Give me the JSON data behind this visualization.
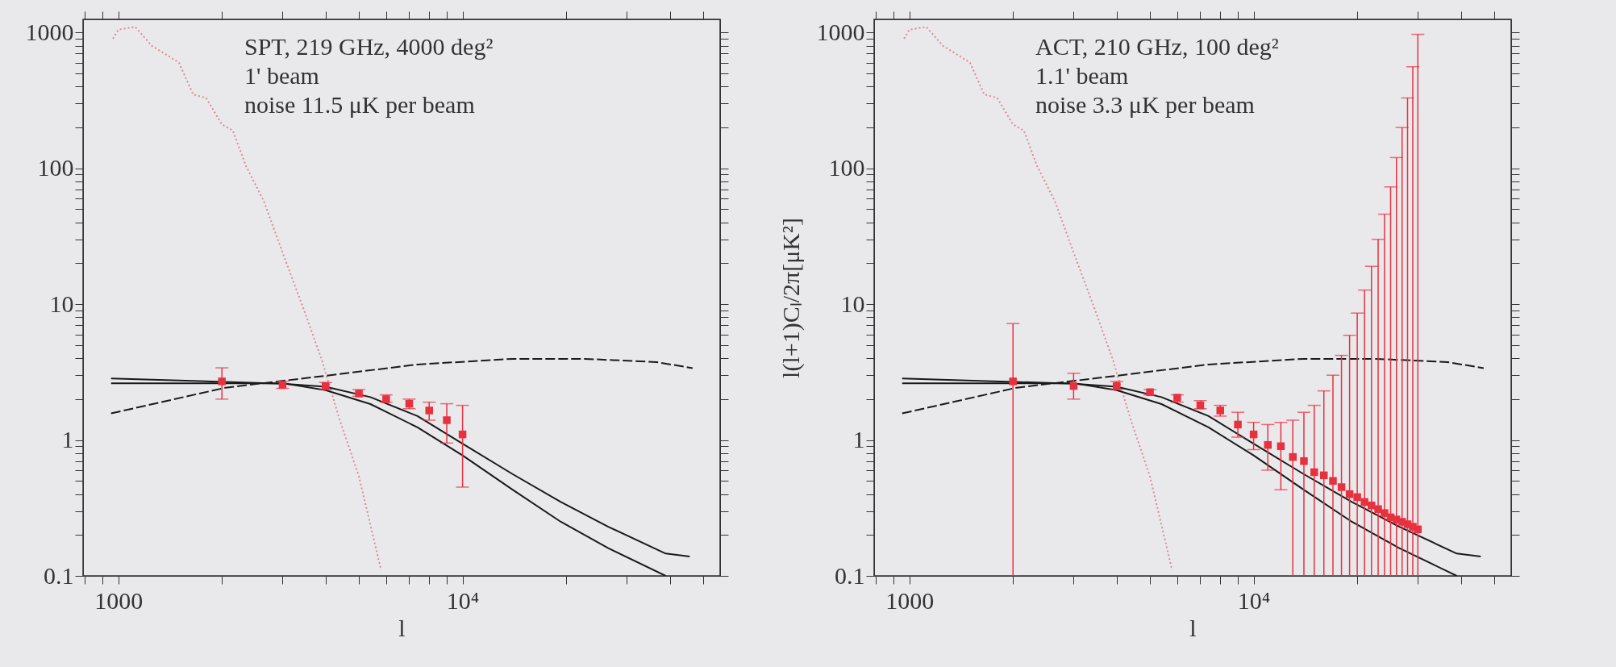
{
  "chart_data": [
    {
      "type": "line",
      "xlabel": "l",
      "log": "xy",
      "grid": false,
      "annotations": [
        "SPT, 219 GHz, 4000 deg²",
        "1' beam",
        "noise 11.5 μK per beam"
      ],
      "xlim": [
        790,
        56000
      ],
      "ylim": [
        0.1,
        1250
      ],
      "xticks": [
        {
          "value": 800,
          "label": null
        },
        {
          "value": 900,
          "label": null
        },
        1000,
        {
          "value": 2000,
          "label": null
        },
        {
          "value": 3000,
          "label": null
        },
        {
          "value": 4000,
          "label": null
        },
        {
          "value": 5000,
          "label": null
        },
        {
          "value": 6000,
          "label": null
        },
        {
          "value": 7000,
          "label": null
        },
        {
          "value": 8000,
          "label": null
        },
        {
          "value": 9000,
          "label": null
        },
        {
          "value": 10000,
          "label": "10⁴"
        },
        {
          "value": 20000,
          "label": null
        },
        {
          "value": 30000,
          "label": null
        },
        {
          "value": 40000,
          "label": null
        },
        {
          "value": 50000,
          "label": null
        }
      ],
      "yticks": [
        0.1,
        {
          "value": 0.2,
          "label": null
        },
        {
          "value": 0.3,
          "label": null
        },
        {
          "value": 0.4,
          "label": null
        },
        {
          "value": 0.5,
          "label": null
        },
        {
          "value": 0.6,
          "label": null
        },
        {
          "value": 0.7,
          "label": null
        },
        {
          "value": 0.8,
          "label": null
        },
        {
          "value": 0.9,
          "label": null
        },
        1,
        {
          "value": 2,
          "label": null
        },
        {
          "value": 3,
          "label": null
        },
        {
          "value": 4,
          "label": null
        },
        {
          "value": 5,
          "label": null
        },
        {
          "value": 6,
          "label": null
        },
        {
          "value": 7,
          "label": null
        },
        {
          "value": 8,
          "label": null
        },
        {
          "value": 9,
          "label": null
        },
        10,
        {
          "value": 20,
          "label": null
        },
        {
          "value": 30,
          "label": null
        },
        {
          "value": 40,
          "label": null
        },
        {
          "value": 50,
          "label": null
        },
        {
          "value": 60,
          "label": null
        },
        {
          "value": 70,
          "label": null
        },
        {
          "value": 80,
          "label": null
        },
        {
          "value": 90,
          "label": null
        },
        100,
        {
          "value": 200,
          "label": null
        },
        {
          "value": 300,
          "label": null
        },
        {
          "value": 400,
          "label": null
        },
        {
          "value": 500,
          "label": null
        },
        {
          "value": 600,
          "label": null
        },
        {
          "value": 700,
          "label": null
        },
        {
          "value": 800,
          "label": null
        },
        {
          "value": 900,
          "label": null
        },
        1000
      ],
      "series": [
        {
          "type": "line",
          "color": "#d98c8c",
          "line_style": "dotted",
          "x": [
            965,
            1000,
            1120,
            1250,
            1400,
            1500,
            1650,
            1800,
            2000,
            2150,
            2350,
            2650,
            3000,
            3450,
            3900,
            4400,
            5000,
            5800
          ],
          "values": [
            900,
            1050,
            1100,
            800,
            670,
            600,
            350,
            330,
            210,
            190,
            104,
            57,
            24,
            9.3,
            3.9,
            1.4,
            0.54,
            0.11
          ]
        },
        {
          "type": "line",
          "color": "#1a1a1a",
          "line_style": "dashed",
          "x": [
            953,
            2050,
            3900,
            7400,
            14000,
            22600,
            36600,
            46600
          ],
          "values": [
            1.57,
            2.43,
            2.95,
            3.6,
            3.96,
            3.96,
            3.75,
            3.38
          ]
        },
        {
          "type": "line",
          "color": "#1a1a1a",
          "line_style": "solid",
          "x": [
            953,
            3000,
            4000,
            5400,
            7400,
            10000,
            14000,
            19300,
            26500,
            38900,
            45700
          ],
          "values": [
            2.84,
            2.6,
            2.47,
            2.07,
            1.5,
            0.94,
            0.56,
            0.35,
            0.23,
            0.146,
            0.139
          ]
        },
        {
          "type": "line",
          "color": "#1a1a1a",
          "line_style": "solid",
          "x": [
            953,
            3000,
            4000,
            5400,
            7400,
            10000,
            14000,
            19300,
            26500,
            38900
          ],
          "values": [
            2.62,
            2.62,
            2.33,
            1.84,
            1.24,
            0.77,
            0.43,
            0.25,
            0.16,
            0.1
          ]
        },
        {
          "type": "scatter",
          "color": "#e8313f",
          "marker": "square",
          "x": [
            2000,
            3000,
            4000,
            5000,
            6000,
            7000,
            8000,
            9000,
            10000
          ],
          "values": [
            2.7,
            2.55,
            2.5,
            2.2,
            2.0,
            1.85,
            1.65,
            1.4,
            1.1
          ],
          "errors": [
            [
              2.0,
              3.4
            ],
            [
              2.4,
              2.7
            ],
            [
              2.35,
              2.65
            ],
            [
              2.1,
              2.35
            ],
            [
              1.9,
              2.15
            ],
            [
              1.7,
              2.0
            ],
            [
              1.4,
              1.9
            ],
            [
              0.95,
              1.85
            ],
            [
              0.45,
              1.8
            ]
          ]
        }
      ]
    },
    {
      "type": "line",
      "xlabel": "l",
      "ylabel": "l(l+1)Cₗ/2π[μK²]",
      "log": "xy",
      "grid": false,
      "annotations": [
        "ACT, 210 GHz, 100 deg²",
        "1.1' beam",
        "noise 3.3 μK per beam"
      ],
      "xlim": [
        790,
        56000
      ],
      "ylim": [
        0.1,
        1250
      ],
      "xticks": [
        {
          "value": 800,
          "label": null
        },
        {
          "value": 900,
          "label": null
        },
        1000,
        {
          "value": 2000,
          "label": null
        },
        {
          "value": 3000,
          "label": null
        },
        {
          "value": 4000,
          "label": null
        },
        {
          "value": 5000,
          "label": null
        },
        {
          "value": 6000,
          "label": null
        },
        {
          "value": 7000,
          "label": null
        },
        {
          "value": 8000,
          "label": null
        },
        {
          "value": 9000,
          "label": null
        },
        {
          "value": 10000,
          "label": "10⁴"
        },
        {
          "value": 20000,
          "label": null
        },
        {
          "value": 30000,
          "label": null
        },
        {
          "value": 40000,
          "label": null
        },
        {
          "value": 50000,
          "label": null
        }
      ],
      "yticks": [
        0.1,
        {
          "value": 0.2,
          "label": null
        },
        {
          "value": 0.3,
          "label": null
        },
        {
          "value": 0.4,
          "label": null
        },
        {
          "value": 0.5,
          "label": null
        },
        {
          "value": 0.6,
          "label": null
        },
        {
          "value": 0.7,
          "label": null
        },
        {
          "value": 0.8,
          "label": null
        },
        {
          "value": 0.9,
          "label": null
        },
        1,
        {
          "value": 2,
          "label": null
        },
        {
          "value": 3,
          "label": null
        },
        {
          "value": 4,
          "label": null
        },
        {
          "value": 5,
          "label": null
        },
        {
          "value": 6,
          "label": null
        },
        {
          "value": 7,
          "label": null
        },
        {
          "value": 8,
          "label": null
        },
        {
          "value": 9,
          "label": null
        },
        10,
        {
          "value": 20,
          "label": null
        },
        {
          "value": 30,
          "label": null
        },
        {
          "value": 40,
          "label": null
        },
        {
          "value": 50,
          "label": null
        },
        {
          "value": 60,
          "label": null
        },
        {
          "value": 70,
          "label": null
        },
        {
          "value": 80,
          "label": null
        },
        {
          "value": 90,
          "label": null
        },
        100,
        {
          "value": 200,
          "label": null
        },
        {
          "value": 300,
          "label": null
        },
        {
          "value": 400,
          "label": null
        },
        {
          "value": 500,
          "label": null
        },
        {
          "value": 600,
          "label": null
        },
        {
          "value": 700,
          "label": null
        },
        {
          "value": 800,
          "label": null
        },
        {
          "value": 900,
          "label": null
        },
        1000
      ],
      "series": [
        {
          "type": "line",
          "color": "#d98c8c",
          "line_style": "dotted",
          "x": [
            965,
            1000,
            1120,
            1250,
            1400,
            1500,
            1650,
            1800,
            2000,
            2150,
            2350,
            2650,
            3000,
            3450,
            3900,
            4400,
            5000,
            5800
          ],
          "values": [
            900,
            1050,
            1100,
            800,
            670,
            600,
            350,
            330,
            210,
            190,
            104,
            57,
            24,
            9.3,
            3.9,
            1.4,
            0.54,
            0.11
          ]
        },
        {
          "type": "line",
          "color": "#1a1a1a",
          "line_style": "dashed",
          "x": [
            953,
            2050,
            3900,
            7400,
            14000,
            22600,
            36600,
            46600
          ],
          "values": [
            1.57,
            2.43,
            2.95,
            3.6,
            3.96,
            3.96,
            3.75,
            3.38
          ]
        },
        {
          "type": "line",
          "color": "#1a1a1a",
          "line_style": "solid",
          "x": [
            953,
            3000,
            4000,
            5400,
            7400,
            10000,
            14000,
            19300,
            26500,
            38900,
            45700
          ],
          "values": [
            2.84,
            2.6,
            2.47,
            2.07,
            1.5,
            0.94,
            0.56,
            0.35,
            0.23,
            0.146,
            0.139
          ]
        },
        {
          "type": "line",
          "color": "#1a1a1a",
          "line_style": "solid",
          "x": [
            953,
            3000,
            4000,
            5400,
            7400,
            10000,
            14000,
            19300,
            26500,
            38900
          ],
          "values": [
            2.62,
            2.62,
            2.33,
            1.84,
            1.24,
            0.77,
            0.43,
            0.25,
            0.16,
            0.1
          ]
        },
        {
          "type": "scatter",
          "color": "#e8313f",
          "marker": "square",
          "x": [
            2000,
            3000,
            4000,
            5000,
            6000,
            7000,
            8000,
            9000,
            10000,
            11000,
            12000,
            13000,
            14000,
            15000,
            16000,
            17000,
            18000,
            19000,
            20000,
            21000,
            22000,
            23000,
            24000,
            25000,
            26000,
            27000,
            28000,
            29000,
            30000
          ],
          "values": [
            2.7,
            2.5,
            2.5,
            2.25,
            2.05,
            1.8,
            1.65,
            1.3,
            1.1,
            0.92,
            0.9,
            0.75,
            0.7,
            0.58,
            0.55,
            0.5,
            0.45,
            0.4,
            0.38,
            0.35,
            0.33,
            0.31,
            0.29,
            0.27,
            0.26,
            0.25,
            0.24,
            0.23,
            0.22
          ],
          "errors": [
            [
              0.1,
              7.2
            ],
            [
              2.0,
              3.1
            ],
            [
              2.35,
              2.7
            ],
            [
              2.15,
              2.35
            ],
            [
              1.9,
              2.15
            ],
            [
              1.7,
              1.95
            ],
            [
              1.5,
              1.8
            ],
            [
              1.05,
              1.6
            ],
            [
              0.85,
              1.35
            ],
            [
              0.6,
              1.3
            ],
            [
              0.43,
              1.35
            ],
            [
              0.1,
              1.4
            ],
            [
              0.1,
              1.6
            ],
            [
              0.1,
              1.8
            ],
            [
              0.1,
              2.3
            ],
            [
              0.1,
              3.0
            ],
            [
              0.1,
              4.2
            ],
            [
              0.1,
              5.9
            ],
            [
              0.1,
              8.6
            ],
            [
              0.1,
              12.7
            ],
            [
              0.1,
              19
            ],
            [
              0.1,
              30
            ],
            [
              0.1,
              46
            ],
            [
              0.1,
              73
            ],
            [
              0.1,
              120
            ],
            [
              0.1,
              200
            ],
            [
              0.1,
              330
            ],
            [
              0.1,
              560
            ],
            [
              0.1,
              970
            ]
          ]
        }
      ]
    }
  ]
}
